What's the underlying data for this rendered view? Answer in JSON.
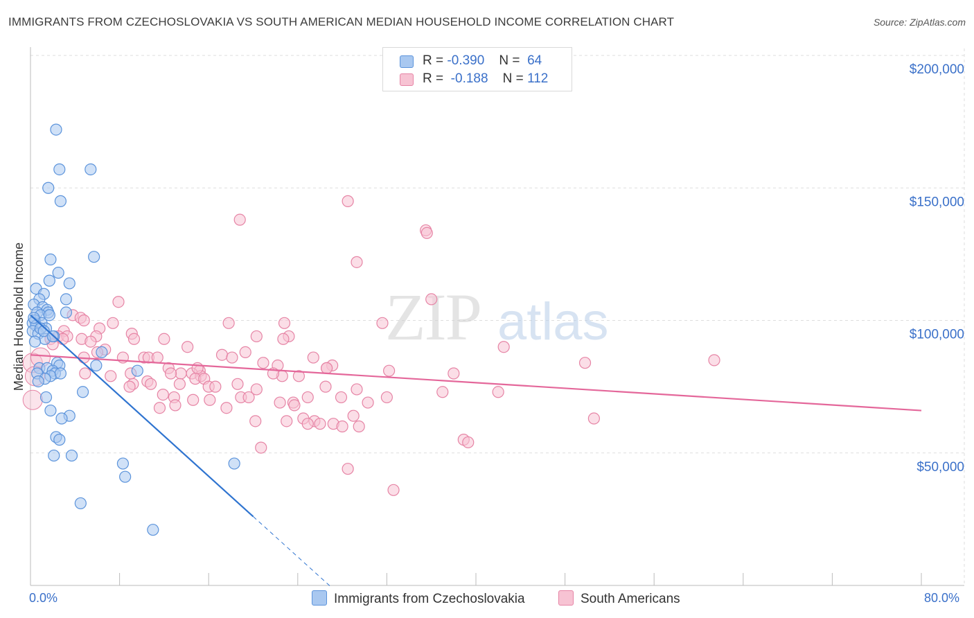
{
  "title": "IMMIGRANTS FROM CZECHOSLOVAKIA VS SOUTH AMERICAN MEDIAN HOUSEHOLD INCOME CORRELATION CHART",
  "source": "Source: ZipAtlas.com",
  "watermark": {
    "zip": "ZIP",
    "atlas": "atlas"
  },
  "legend": {
    "rows": [
      {
        "r_label": "R =",
        "r_value": "-0.390",
        "n_label": "N =",
        "n_value": "64",
        "color": "#a9c8f0"
      },
      {
        "r_label": "R =",
        "r_value": "-0.188",
        "n_label": "N =",
        "n_value": "112",
        "color": "#f7b8cc"
      }
    ]
  },
  "colors": {
    "blue_fill": "#a9c8f0",
    "blue_stroke": "#5b93db",
    "blue_line": "#2f74d0",
    "pink_fill": "#f7c3d3",
    "pink_stroke": "#e684a5",
    "pink_line": "#e4679a",
    "axis_text": "#3a70c9",
    "grid": "#dddddd"
  },
  "chart_data": {
    "type": "scatter",
    "xlabel": "",
    "ylabel": "Median Household Income",
    "xlim": [
      0,
      80
    ],
    "ylim": [
      0,
      200000
    ],
    "x_tick_labels": [
      "0.0%",
      "80.0%"
    ],
    "y_ticks": [
      50000,
      100000,
      150000,
      200000
    ],
    "y_tick_labels": [
      "$50,000",
      "$100,000",
      "$150,000",
      "$200,000"
    ],
    "series": [
      {
        "name": "Immigrants from Czechoslovakia",
        "color": "#a9c8f0",
        "trend": {
          "x0": 0,
          "y0": 102000,
          "x1": 20,
          "y1": 26000,
          "dash_to_x": 27
        },
        "points": [
          [
            2.3,
            172000
          ],
          [
            2.6,
            157000
          ],
          [
            5.4,
            157000
          ],
          [
            1.6,
            150000
          ],
          [
            2.7,
            145000
          ],
          [
            5.7,
            124000
          ],
          [
            1.8,
            123000
          ],
          [
            2.5,
            118000
          ],
          [
            1.7,
            115000
          ],
          [
            3.5,
            114000
          ],
          [
            0.5,
            112000
          ],
          [
            1.2,
            110000
          ],
          [
            0.8,
            108000
          ],
          [
            3.2,
            108000
          ],
          [
            0.3,
            106000
          ],
          [
            1.1,
            105000
          ],
          [
            1.5,
            104000
          ],
          [
            0.6,
            103000
          ],
          [
            1.6,
            103000
          ],
          [
            3.2,
            103000
          ],
          [
            0.9,
            102000
          ],
          [
            1.7,
            102000
          ],
          [
            0.4,
            100000
          ],
          [
            0.2,
            99000
          ],
          [
            1.0,
            99000
          ],
          [
            0.5,
            98000
          ],
          [
            1.4,
            97000
          ],
          [
            0.2,
            96000
          ],
          [
            0.7,
            95000
          ],
          [
            2.1,
            94000
          ],
          [
            1.3,
            93000
          ],
          [
            0.4,
            92000
          ],
          [
            6.4,
            88000
          ],
          [
            2.4,
            84000
          ],
          [
            5.9,
            83000
          ],
          [
            0.8,
            82000
          ],
          [
            1.5,
            82000
          ],
          [
            2.6,
            83000
          ],
          [
            2.0,
            81000
          ],
          [
            0.6,
            80000
          ],
          [
            2.2,
            80000
          ],
          [
            9.6,
            81000
          ],
          [
            1.8,
            79000
          ],
          [
            2.7,
            80000
          ],
          [
            1.3,
            78000
          ],
          [
            0.7,
            77000
          ],
          [
            4.7,
            73000
          ],
          [
            1.4,
            71000
          ],
          [
            1.8,
            66000
          ],
          [
            3.5,
            64000
          ],
          [
            2.8,
            63000
          ],
          [
            2.3,
            56000
          ],
          [
            2.6,
            55000
          ],
          [
            2.1,
            49000
          ],
          [
            3.7,
            49000
          ],
          [
            8.3,
            46000
          ],
          [
            18.3,
            46000
          ],
          [
            8.5,
            41000
          ],
          [
            4.5,
            31000
          ],
          [
            11.0,
            21000
          ],
          [
            0.9,
            97000
          ],
          [
            1.2,
            96000
          ],
          [
            0.3,
            101000
          ],
          [
            2.0,
            94000
          ]
        ]
      },
      {
        "name": "South Americans",
        "color": "#f7b8cc",
        "trend": {
          "x0": 0,
          "y0": 87000,
          "x1": 80,
          "y1": 66000
        },
        "points": [
          [
            28.5,
            145000
          ],
          [
            18.8,
            138000
          ],
          [
            35.5,
            134000
          ],
          [
            35.6,
            133000
          ],
          [
            29.3,
            122000
          ],
          [
            36.0,
            108000
          ],
          [
            7.9,
            107000
          ],
          [
            3.8,
            102000
          ],
          [
            4.5,
            101000
          ],
          [
            4.8,
            100000
          ],
          [
            7.4,
            99000
          ],
          [
            17.8,
            99000
          ],
          [
            22.8,
            99000
          ],
          [
            31.6,
            99000
          ],
          [
            6.2,
            97000
          ],
          [
            3.0,
            96000
          ],
          [
            9.1,
            95000
          ],
          [
            5.9,
            94000
          ],
          [
            2.5,
            94000
          ],
          [
            3.3,
            94000
          ],
          [
            1.8,
            93000
          ],
          [
            2.9,
            93000
          ],
          [
            4.6,
            93000
          ],
          [
            20.3,
            94000
          ],
          [
            23.2,
            94000
          ],
          [
            12.0,
            93000
          ],
          [
            9.3,
            93000
          ],
          [
            5.4,
            92000
          ],
          [
            2.0,
            91000
          ],
          [
            14.1,
            90000
          ],
          [
            42.5,
            90000
          ],
          [
            6.7,
            89000
          ],
          [
            19.3,
            88000
          ],
          [
            6.0,
            88000
          ],
          [
            17.2,
            87000
          ],
          [
            10.2,
            86000
          ],
          [
            10.6,
            86000
          ],
          [
            11.4,
            86000
          ],
          [
            8.3,
            86000
          ],
          [
            4.8,
            86000
          ],
          [
            18.1,
            86000
          ],
          [
            61.4,
            85000
          ],
          [
            49.8,
            84000
          ],
          [
            20.9,
            84000
          ],
          [
            27.1,
            83000
          ],
          [
            26.6,
            82000
          ],
          [
            22.2,
            83000
          ],
          [
            12.4,
            82000
          ],
          [
            15.2,
            81000
          ],
          [
            32.2,
            81000
          ],
          [
            38.0,
            80000
          ],
          [
            13.5,
            80000
          ],
          [
            14.5,
            80000
          ],
          [
            22.6,
            79000
          ],
          [
            24.1,
            79000
          ],
          [
            7.2,
            79000
          ],
          [
            15.3,
            79000
          ],
          [
            14.8,
            78000
          ],
          [
            15.6,
            78000
          ],
          [
            10.5,
            77000
          ],
          [
            9.2,
            76000
          ],
          [
            10.8,
            76000
          ],
          [
            13.4,
            76000
          ],
          [
            16.0,
            75000
          ],
          [
            16.6,
            75000
          ],
          [
            26.5,
            75000
          ],
          [
            29.3,
            74000
          ],
          [
            20.3,
            74000
          ],
          [
            37.0,
            73000
          ],
          [
            42.0,
            73000
          ],
          [
            8.9,
            75000
          ],
          [
            12.9,
            71000
          ],
          [
            18.9,
            71000
          ],
          [
            19.6,
            71000
          ],
          [
            16.1,
            70000
          ],
          [
            24.9,
            71000
          ],
          [
            27.9,
            71000
          ],
          [
            22.4,
            69000
          ],
          [
            23.6,
            69000
          ],
          [
            30.3,
            69000
          ],
          [
            14.6,
            70000
          ],
          [
            13.0,
            68000
          ],
          [
            17.6,
            67000
          ],
          [
            11.6,
            67000
          ],
          [
            24.5,
            63000
          ],
          [
            32.0,
            71000
          ],
          [
            29.0,
            64000
          ],
          [
            50.6,
            63000
          ],
          [
            23.0,
            62000
          ],
          [
            20.2,
            62000
          ],
          [
            25.5,
            62000
          ],
          [
            24.9,
            61000
          ],
          [
            27.2,
            61000
          ],
          [
            26.0,
            61000
          ],
          [
            29.5,
            60000
          ],
          [
            28.0,
            60000
          ],
          [
            38.9,
            55000
          ],
          [
            39.3,
            54000
          ],
          [
            20.7,
            52000
          ],
          [
            28.5,
            44000
          ],
          [
            32.6,
            36000
          ],
          [
            22.7,
            93000
          ],
          [
            25.4,
            86000
          ],
          [
            18.6,
            76000
          ],
          [
            4.9,
            80000
          ],
          [
            21.8,
            80000
          ],
          [
            26.6,
            82000
          ],
          [
            12.6,
            80000
          ],
          [
            23.7,
            68000
          ],
          [
            9.0,
            80000
          ],
          [
            15.0,
            82000
          ],
          [
            11.9,
            72000
          ]
        ],
        "large_points": [
          [
            0.2,
            84000
          ],
          [
            0.2,
            70000
          ],
          [
            0.9,
            86000
          ],
          [
            0.4,
            79000
          ]
        ]
      }
    ]
  }
}
